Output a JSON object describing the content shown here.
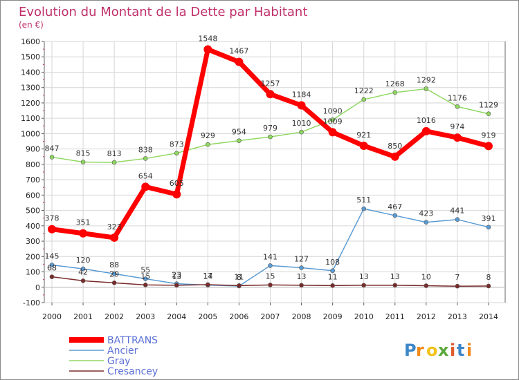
{
  "chart_data": {
    "type": "line",
    "title": "Evolution du Montant de la Dette par Habitant",
    "subtitle": "(en €)",
    "xlabel": "",
    "ylabel": "",
    "x": [
      "2000",
      "2001",
      "2002",
      "2003",
      "2004",
      "2005",
      "2006",
      "2007",
      "2008",
      "2009",
      "2010",
      "2011",
      "2012",
      "2013",
      "2014"
    ],
    "ylim": [
      -100,
      1600
    ],
    "yticks": [
      -100,
      0,
      100,
      200,
      300,
      400,
      500,
      600,
      700,
      800,
      900,
      1000,
      1100,
      1200,
      1300,
      1400,
      1500,
      1600
    ],
    "grid": true,
    "legend": "bottom-left",
    "series": [
      {
        "name": "BATTRANS",
        "color": "#ff0000",
        "values": [
          378,
          351,
          323,
          654,
          605,
          1548,
          1467,
          1257,
          1184,
          1009,
          921,
          850,
          1016,
          974,
          919
        ]
      },
      {
        "name": "Ancier",
        "color": "#5a9bd4",
        "values": [
          145,
          120,
          88,
          55,
          23,
          14,
          8,
          141,
          127,
          108,
          511,
          467,
          423,
          441,
          391
        ]
      },
      {
        "name": "Gray",
        "color": "#8fd860",
        "values": [
          847,
          815,
          813,
          838,
          873,
          929,
          954,
          979,
          1010,
          1090,
          1222,
          1268,
          1292,
          1176,
          1129
        ]
      },
      {
        "name": "Cresancey",
        "color": "#7a2a2a",
        "values": [
          68,
          42,
          29,
          15,
          13,
          17,
          11,
          15,
          13,
          11,
          13,
          13,
          10,
          7,
          8
        ]
      }
    ]
  },
  "logo": {
    "text": "Proxiti",
    "letters": [
      "P",
      "r",
      "o",
      "x",
      "i",
      "t",
      "i"
    ],
    "colors": [
      "#3b86c8",
      "#f28a1a",
      "#f2c21a",
      "#5aa83c",
      "#e05a2a",
      "#3b86c8",
      "#f28a1a"
    ]
  }
}
